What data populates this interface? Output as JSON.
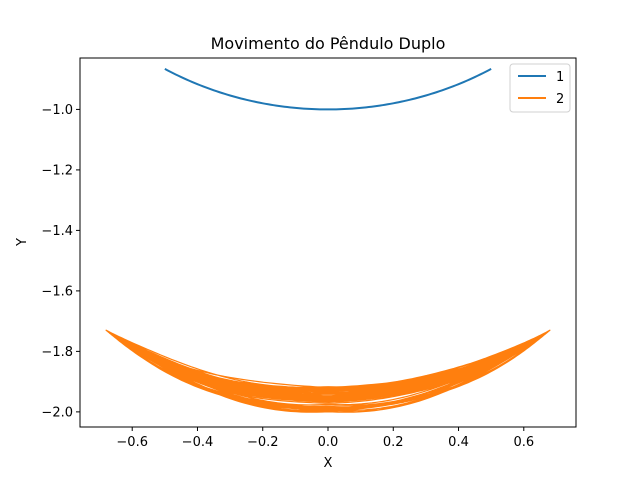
{
  "chart_data": {
    "type": "line",
    "title": "Movimento do Pêndulo Duplo",
    "xlabel": "X",
    "ylabel": "Y",
    "xlim": [
      -0.76,
      0.76
    ],
    "ylim": [
      -2.05,
      -0.83
    ],
    "x_ticks": [
      -0.6,
      -0.4,
      -0.2,
      0.0,
      0.2,
      0.4,
      0.6
    ],
    "x_tick_labels": [
      "−0.6",
      "−0.4",
      "−0.2",
      "0.0",
      "0.2",
      "0.4",
      "0.6"
    ],
    "y_ticks": [
      -1.0,
      -1.2,
      -1.4,
      -1.6,
      -1.8,
      -2.0
    ],
    "y_tick_labels": [
      "−1.0",
      "−1.2",
      "−1.4",
      "−1.6",
      "−1.8",
      "−2.0"
    ],
    "grid": false,
    "legend_position": "top-right",
    "series": [
      {
        "name": "1",
        "color": "#1f77b4",
        "model": "bob1",
        "length": 1.0,
        "amplitude_x": 0.5
      },
      {
        "name": "2",
        "color": "#ff7f0e",
        "model": "bob2",
        "amplitude_x": 0.68,
        "y_at_edges": -1.73,
        "y_center_band": [
          -2.0,
          -1.91
        ]
      }
    ]
  }
}
